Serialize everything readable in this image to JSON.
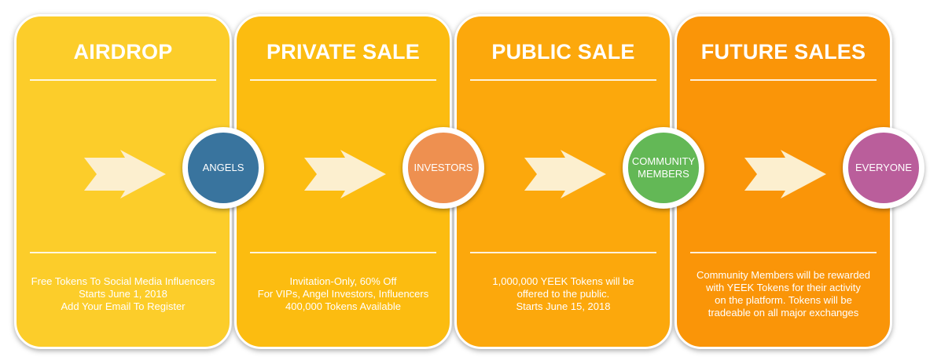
{
  "stages": [
    {
      "title": "AIRDROP",
      "color": "#FCCD2A",
      "lines": [
        "Free Tokens To Social Media Influencers",
        "Starts June 1, 2018",
        "Add Your Email To Register"
      ],
      "badge": {
        "lines": [
          "ANGELS"
        ],
        "color": "#39749E"
      }
    },
    {
      "title": "PRIVATE SALE",
      "color": "#FCBC10",
      "lines": [
        "Invitation-Only, 60% Off",
        "For VIPs, Angel Investors, Influencers",
        "400,000 Tokens Available"
      ],
      "badge": {
        "lines": [
          "INVESTORS"
        ],
        "color": "#EE9050"
      }
    },
    {
      "title": "PUBLIC SALE",
      "color": "#FCA80C",
      "lines": [
        "1,000,000 YEEK Tokens will be",
        "offered to the public.",
        "Starts June 15, 2018"
      ],
      "badge": {
        "lines": [
          "COMMUNITY",
          "MEMBERS"
        ],
        "color": "#63B856"
      }
    },
    {
      "title": "FUTURE SALES",
      "color": "#FA9508",
      "lines": [
        "Community Members will be rewarded",
        "with YEEK Tokens for their activity",
        "on the platform. Tokens will be",
        "tradeable on all major exchanges"
      ],
      "badge": {
        "lines": [
          "EVERYONE"
        ],
        "color": "#BA5E9B"
      }
    }
  ],
  "arrow_color": "#FCEFCF"
}
